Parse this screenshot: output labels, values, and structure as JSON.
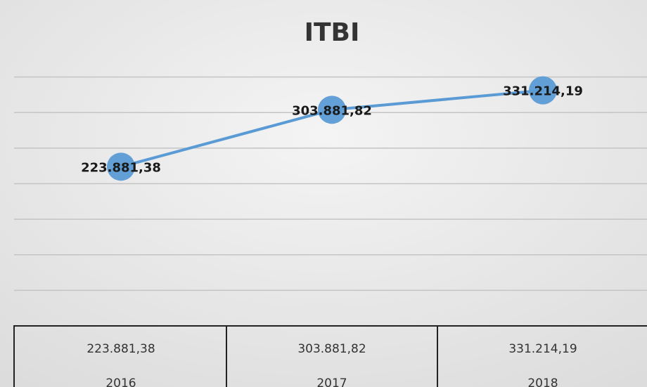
{
  "chart_data": {
    "type": "line",
    "title": "ITBI",
    "categories": [
      "2016",
      "2017",
      "2018"
    ],
    "series": [
      {
        "color": "#5b9bd5",
        "values": [
          223881.38,
          303881.82,
          331214.19
        ],
        "value_labels": [
          "223.881,38",
          "303.881,82",
          "331.214,19"
        ]
      }
    ],
    "ylim": [
      0,
      400000
    ],
    "yticks": [
      0,
      50000,
      100000,
      150000,
      200000,
      250000,
      300000,
      350000
    ],
    "grid": true
  }
}
